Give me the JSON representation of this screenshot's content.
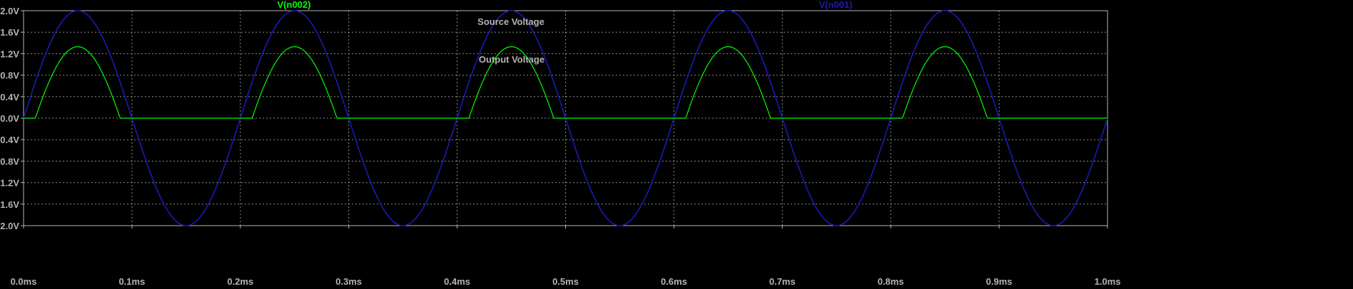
{
  "window": {
    "background": "#000000"
  },
  "chart_data": {
    "type": "line",
    "title": "",
    "xlabel": "",
    "ylabel": "",
    "xlim": [
      0,
      1.0
    ],
    "ylim": [
      -2.0,
      2.0
    ],
    "grid": true,
    "x_unit": "ms",
    "y_unit": "V",
    "x_ticks": [
      "0.0ms",
      "0.1ms",
      "0.2ms",
      "0.3ms",
      "0.4ms",
      "0.5ms",
      "0.6ms",
      "0.7ms",
      "0.8ms",
      "0.9ms",
      "1.0ms"
    ],
    "x_tick_values": [
      0.0,
      0.1,
      0.2,
      0.3,
      0.4,
      0.5,
      0.6,
      0.7,
      0.8,
      0.9,
      1.0
    ],
    "y_ticks": [
      "2.0V",
      "1.6V",
      "1.2V",
      "0.8V",
      "0.4V",
      "0.0V",
      "-0.4V",
      "-0.8V",
      "-1.2V",
      "-1.6V",
      "-2.0V"
    ],
    "y_tick_values": [
      2.0,
      1.6,
      1.2,
      0.8,
      0.4,
      0.0,
      -0.4,
      -0.8,
      -1.2,
      -1.6,
      -2.0
    ],
    "series": [
      {
        "name": "V(n001)",
        "color": "#1a1ab4",
        "description": "sine 2V amplitude, 5kHz",
        "amplitude": 2.0,
        "frequency_khz": 5.0
      },
      {
        "name": "V(n002)",
        "color": "#00ff00",
        "description": "half-wave rectified with diode drop",
        "peak": 1.33,
        "diode_threshold": 0.67
      }
    ],
    "annotations": [
      "Source Voltage",
      "Output Voltage"
    ],
    "legend": "top"
  }
}
